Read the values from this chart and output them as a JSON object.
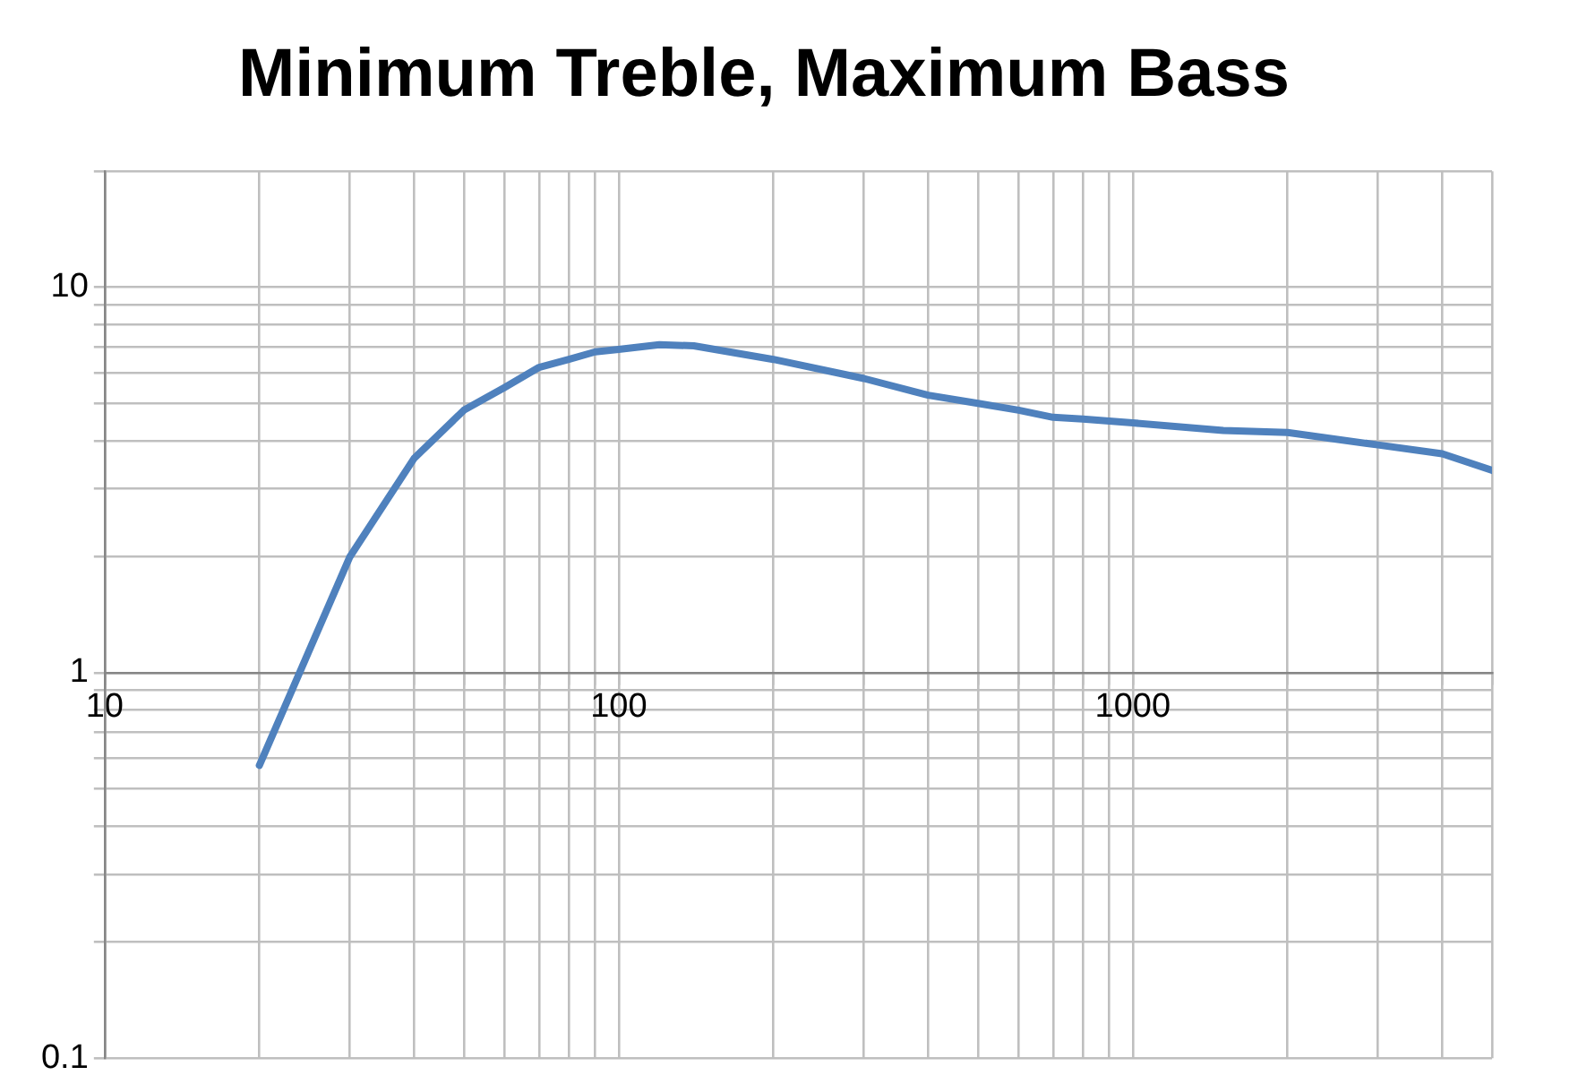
{
  "chart_data": {
    "type": "line",
    "title": "Minimum Treble, Maximum Bass",
    "log": "xy",
    "grid": true,
    "legend": false,
    "marker": "none",
    "line_style": "solid",
    "xlim": [
      10,
      5000
    ],
    "ylim": [
      0.1,
      20
    ],
    "xticks": [
      10,
      {
        "value": 20,
        "label": null
      },
      {
        "value": 30,
        "label": null
      },
      {
        "value": 40,
        "label": null
      },
      {
        "value": 50,
        "label": null
      },
      {
        "value": 60,
        "label": null
      },
      {
        "value": 70,
        "label": null
      },
      {
        "value": 80,
        "label": null
      },
      {
        "value": 90,
        "label": null
      },
      100,
      {
        "value": 200,
        "label": null
      },
      {
        "value": 300,
        "label": null
      },
      {
        "value": 400,
        "label": null
      },
      {
        "value": 500,
        "label": null
      },
      {
        "value": 600,
        "label": null
      },
      {
        "value": 700,
        "label": null
      },
      {
        "value": 800,
        "label": null
      },
      {
        "value": 900,
        "label": null
      },
      1000,
      {
        "value": 2000,
        "label": null
      },
      {
        "value": 3000,
        "label": null
      },
      {
        "value": 4000,
        "label": null
      },
      {
        "value": 5000,
        "label": null
      }
    ],
    "yticks": [
      0.1,
      {
        "value": 0.2,
        "label": null
      },
      {
        "value": 0.3,
        "label": null
      },
      {
        "value": 0.4,
        "label": null
      },
      {
        "value": 0.5,
        "label": null
      },
      {
        "value": 0.6,
        "label": null
      },
      {
        "value": 0.7,
        "label": null
      },
      {
        "value": 0.8,
        "label": null
      },
      {
        "value": 0.9,
        "label": null
      },
      1,
      {
        "value": 2,
        "label": null
      },
      {
        "value": 3,
        "label": null
      },
      {
        "value": 4,
        "label": null
      },
      {
        "value": 5,
        "label": null
      },
      {
        "value": 6,
        "label": null
      },
      {
        "value": 7,
        "label": null
      },
      {
        "value": 8,
        "label": null
      },
      {
        "value": 9,
        "label": null
      },
      10,
      {
        "value": 20,
        "label": null
      }
    ],
    "series": [
      {
        "color": "#4f81bd",
        "x": [
          20,
          30,
          40,
          50,
          60,
          70,
          80,
          90,
          100,
          120,
          140,
          200,
          300,
          400,
          500,
          600,
          700,
          800,
          1000,
          1500,
          2000,
          3000,
          4000,
          5000
        ],
        "values": [
          0.575,
          2.0,
          3.6,
          4.8,
          5.5,
          6.2,
          6.5,
          6.8,
          6.9,
          7.1,
          7.05,
          6.5,
          5.8,
          5.25,
          5.0,
          4.8,
          4.6,
          4.55,
          4.45,
          4.25,
          4.2,
          3.9,
          3.7,
          3.35
        ]
      }
    ]
  }
}
